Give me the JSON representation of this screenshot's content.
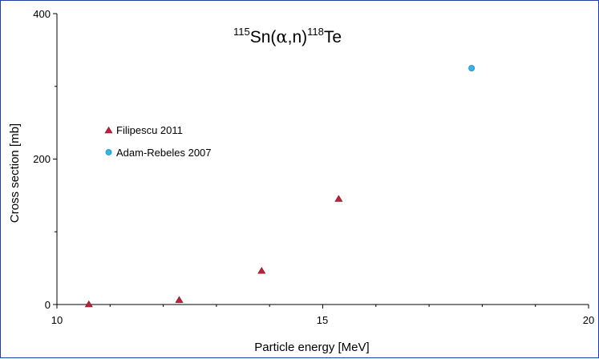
{
  "chart_data": {
    "type": "scatter",
    "title_parts": {
      "mass_target": "115",
      "target": "Sn(",
      "alpha": "α",
      "reaction_rest": ",n)",
      "mass_product": "118",
      "product": "Te"
    },
    "xlabel": "Particle energy [MeV]",
    "ylabel": "Cross section [mb]",
    "xlim": [
      10,
      20
    ],
    "ylim": [
      0,
      400
    ],
    "x_ticks": [
      "10",
      "15",
      "20"
    ],
    "y_ticks": [
      "0",
      "200",
      "400"
    ],
    "grid": false,
    "legend_placement": "upper-left, inside plot",
    "series": [
      {
        "name": "Filipescu 2011",
        "marker": "triangle",
        "color": "#c0203a",
        "x": [
          10.6,
          12.3,
          13.85,
          15.3
        ],
        "y": [
          0,
          6,
          46,
          145
        ]
      },
      {
        "name": "Adam-Rebeles 2007",
        "marker": "circle",
        "color": "#29b8f0",
        "x": [
          17.8
        ],
        "y": [
          325
        ]
      }
    ]
  }
}
